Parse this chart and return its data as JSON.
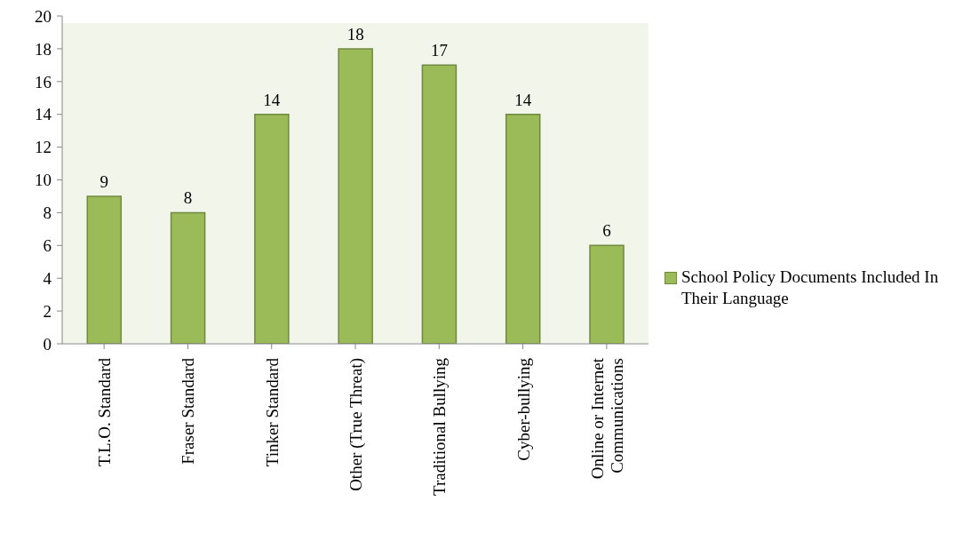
{
  "chart_data": {
    "type": "bar",
    "categories": [
      "T.L.O. Standard",
      "Fraser Standard",
      "Tinker Standard",
      "Other (True Threat)",
      "Traditional Bullying",
      "Cyber-bullying",
      "Online or Internet Communications"
    ],
    "series": [
      {
        "name": "School Policy Documents Included In Their Language",
        "color": "#9bbb59",
        "values": [
          9,
          8,
          14,
          18,
          17,
          14,
          6
        ]
      }
    ],
    "ylim": [
      0,
      20
    ],
    "yticks": [
      0,
      2,
      4,
      6,
      8,
      10,
      12,
      14,
      16,
      18,
      20
    ],
    "grid": false,
    "legend": "right",
    "data_labels": true
  }
}
